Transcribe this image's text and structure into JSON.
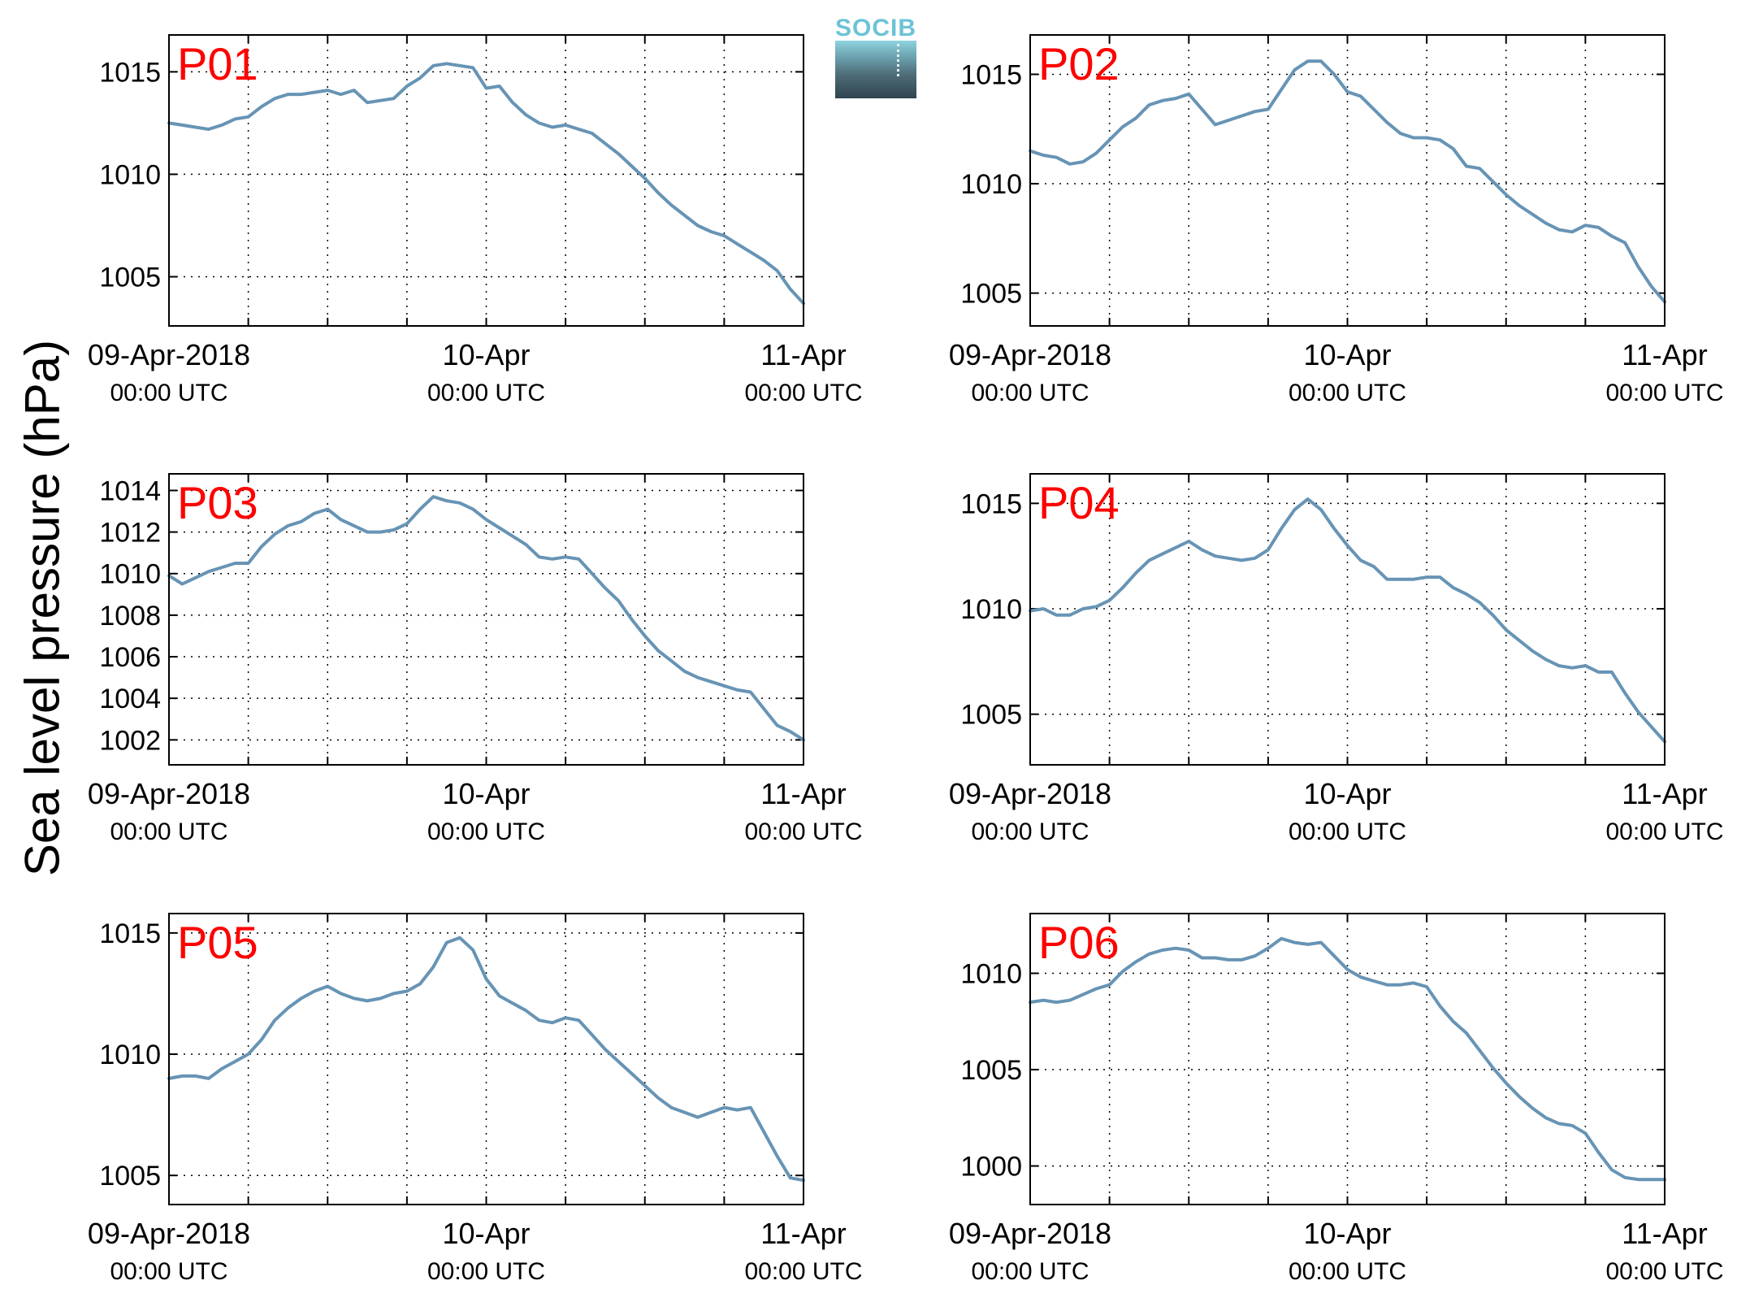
{
  "figure": {
    "ylabel": "Sea level pressure (hPa)",
    "logo_text": "SOCIB",
    "colors": {
      "series": "#6794b5",
      "station_label": "#ff0000",
      "axes": "#000000",
      "grid": "#000000"
    }
  },
  "chart_data": [
    {
      "type": "line",
      "title": "P01",
      "xlabel": "",
      "ylabel": "Sea level pressure (hPa)",
      "xticks": [
        {
          "main": "09-Apr-2018",
          "sub": "00:00 UTC"
        },
        {
          "main": "10-Apr",
          "sub": "00:00 UTC"
        },
        {
          "main": "11-Apr",
          "sub": "00:00 UTC"
        }
      ],
      "xlim_hours": [
        0,
        48
      ],
      "ylim": [
        1002.6,
        1016.8
      ],
      "yticks": [
        1005,
        1010,
        1015
      ],
      "grid": true,
      "series": [
        {
          "x": [
            0,
            1,
            2,
            3,
            4,
            5,
            6,
            7,
            8,
            9,
            10,
            11,
            12,
            13,
            14,
            15,
            16,
            17,
            18,
            19,
            20,
            21,
            22,
            23,
            24,
            25,
            26,
            27,
            28,
            29,
            30,
            31,
            32,
            33,
            34,
            35,
            36,
            37,
            38,
            39,
            40,
            41,
            42,
            43,
            44,
            45,
            46,
            47,
            48
          ],
          "y": [
            1012.5,
            1012.4,
            1012.3,
            1012.2,
            1012.4,
            1012.7,
            1012.8,
            1013.3,
            1013.7,
            1013.9,
            1013.9,
            1014.0,
            1014.1,
            1013.9,
            1014.1,
            1013.5,
            1013.6,
            1013.7,
            1014.3,
            1014.7,
            1015.3,
            1015.4,
            1015.3,
            1015.2,
            1014.2,
            1014.3,
            1013.5,
            1012.9,
            1012.5,
            1012.3,
            1012.4,
            1012.2,
            1012.0,
            1011.5,
            1011.0,
            1010.4,
            1009.8,
            1009.1,
            1008.5,
            1008.0,
            1007.5,
            1007.2,
            1007.0,
            1006.6,
            1006.2,
            1005.8,
            1005.3,
            1004.4,
            1003.7
          ]
        }
      ]
    },
    {
      "type": "line",
      "title": "P02",
      "xlabel": "",
      "ylabel": "Sea level pressure (hPa)",
      "xticks": [
        {
          "main": "09-Apr-2018",
          "sub": "00:00 UTC"
        },
        {
          "main": "10-Apr",
          "sub": "00:00 UTC"
        },
        {
          "main": "11-Apr",
          "sub": "00:00 UTC"
        }
      ],
      "xlim_hours": [
        0,
        48
      ],
      "ylim": [
        1003.5,
        1016.8
      ],
      "yticks": [
        1005,
        1010,
        1015
      ],
      "grid": true,
      "series": [
        {
          "x": [
            0,
            1,
            2,
            3,
            4,
            5,
            6,
            7,
            8,
            9,
            10,
            11,
            12,
            13,
            14,
            15,
            16,
            17,
            18,
            19,
            20,
            21,
            22,
            23,
            24,
            25,
            26,
            27,
            28,
            29,
            30,
            31,
            32,
            33,
            34,
            35,
            36,
            37,
            38,
            39,
            40,
            41,
            42,
            43,
            44,
            45,
            46,
            47,
            48
          ],
          "y": [
            1011.5,
            1011.3,
            1011.2,
            1010.9,
            1011.0,
            1011.4,
            1012.0,
            1012.6,
            1013.0,
            1013.6,
            1013.8,
            1013.9,
            1014.1,
            1013.4,
            1012.7,
            1012.9,
            1013.1,
            1013.3,
            1013.4,
            1014.3,
            1015.2,
            1015.6,
            1015.6,
            1015.0,
            1014.2,
            1014.0,
            1013.4,
            1012.8,
            1012.3,
            1012.1,
            1012.1,
            1012.0,
            1011.6,
            1010.8,
            1010.7,
            1010.1,
            1009.5,
            1009.0,
            1008.6,
            1008.2,
            1007.9,
            1007.8,
            1008.1,
            1008.0,
            1007.6,
            1007.3,
            1006.2,
            1005.3,
            1004.6
          ]
        }
      ]
    },
    {
      "type": "line",
      "title": "P03",
      "xlabel": "",
      "ylabel": "Sea level pressure (hPa)",
      "xticks": [
        {
          "main": "09-Apr-2018",
          "sub": "00:00 UTC"
        },
        {
          "main": "10-Apr",
          "sub": "00:00 UTC"
        },
        {
          "main": "11-Apr",
          "sub": "00:00 UTC"
        }
      ],
      "xlim_hours": [
        0,
        48
      ],
      "ylim": [
        1000.8,
        1014.8
      ],
      "yticks": [
        1002,
        1004,
        1006,
        1008,
        1010,
        1012,
        1014
      ],
      "grid": true,
      "series": [
        {
          "x": [
            0,
            1,
            2,
            3,
            4,
            5,
            6,
            7,
            8,
            9,
            10,
            11,
            12,
            13,
            14,
            15,
            16,
            17,
            18,
            19,
            20,
            21,
            22,
            23,
            24,
            25,
            26,
            27,
            28,
            29,
            30,
            31,
            32,
            33,
            34,
            35,
            36,
            37,
            38,
            39,
            40,
            41,
            42,
            43,
            44,
            45,
            46,
            47,
            48
          ],
          "y": [
            1009.9,
            1009.5,
            1009.8,
            1010.1,
            1010.3,
            1010.5,
            1010.5,
            1011.3,
            1011.9,
            1012.3,
            1012.5,
            1012.9,
            1013.1,
            1012.6,
            1012.3,
            1012.0,
            1012.0,
            1012.1,
            1012.4,
            1013.1,
            1013.7,
            1013.5,
            1013.4,
            1013.1,
            1012.6,
            1012.2,
            1011.8,
            1011.4,
            1010.8,
            1010.7,
            1010.8,
            1010.7,
            1010.0,
            1009.3,
            1008.7,
            1007.8,
            1007.0,
            1006.3,
            1005.8,
            1005.3,
            1005.0,
            1004.8,
            1004.6,
            1004.4,
            1004.3,
            1003.5,
            1002.7,
            1002.4,
            1002.0
          ]
        }
      ]
    },
    {
      "type": "line",
      "title": "P04",
      "xlabel": "",
      "ylabel": "Sea level pressure (hPa)",
      "xticks": [
        {
          "main": "09-Apr-2018",
          "sub": "00:00 UTC"
        },
        {
          "main": "10-Apr",
          "sub": "00:00 UTC"
        },
        {
          "main": "11-Apr",
          "sub": "00:00 UTC"
        }
      ],
      "xlim_hours": [
        0,
        48
      ],
      "ylim": [
        1002.6,
        1016.4
      ],
      "yticks": [
        1005,
        1010,
        1015
      ],
      "grid": true,
      "series": [
        {
          "x": [
            0,
            1,
            2,
            3,
            4,
            5,
            6,
            7,
            8,
            9,
            10,
            11,
            12,
            13,
            14,
            15,
            16,
            17,
            18,
            19,
            20,
            21,
            22,
            23,
            24,
            25,
            26,
            27,
            28,
            29,
            30,
            31,
            32,
            33,
            34,
            35,
            36,
            37,
            38,
            39,
            40,
            41,
            42,
            43,
            44,
            45,
            46,
            47,
            48
          ],
          "y": [
            1009.9,
            1010.0,
            1009.7,
            1009.7,
            1010.0,
            1010.1,
            1010.4,
            1011.0,
            1011.7,
            1012.3,
            1012.6,
            1012.9,
            1013.2,
            1012.8,
            1012.5,
            1012.4,
            1012.3,
            1012.4,
            1012.8,
            1013.8,
            1014.7,
            1015.2,
            1014.7,
            1013.8,
            1013.0,
            1012.3,
            1012.0,
            1011.4,
            1011.4,
            1011.4,
            1011.5,
            1011.5,
            1011.0,
            1010.7,
            1010.3,
            1009.7,
            1009.0,
            1008.5,
            1008.0,
            1007.6,
            1007.3,
            1007.2,
            1007.3,
            1007.0,
            1007.0,
            1006.0,
            1005.1,
            1004.4,
            1003.7
          ]
        }
      ]
    },
    {
      "type": "line",
      "title": "P05",
      "xlabel": "",
      "ylabel": "Sea level pressure (hPa)",
      "xticks": [
        {
          "main": "09-Apr-2018",
          "sub": "00:00 UTC"
        },
        {
          "main": "10-Apr",
          "sub": "00:00 UTC"
        },
        {
          "main": "11-Apr",
          "sub": "00:00 UTC"
        }
      ],
      "xlim_hours": [
        0,
        48
      ],
      "ylim": [
        1003.8,
        1015.8
      ],
      "yticks": [
        1005,
        1010,
        1015
      ],
      "grid": true,
      "series": [
        {
          "x": [
            0,
            1,
            2,
            3,
            4,
            5,
            6,
            7,
            8,
            9,
            10,
            11,
            12,
            13,
            14,
            15,
            16,
            17,
            18,
            19,
            20,
            21,
            22,
            23,
            24,
            25,
            26,
            27,
            28,
            29,
            30,
            31,
            32,
            33,
            34,
            35,
            36,
            37,
            38,
            39,
            40,
            41,
            42,
            43,
            44,
            45,
            46,
            47,
            48
          ],
          "y": [
            1009.0,
            1009.1,
            1009.1,
            1009.0,
            1009.4,
            1009.7,
            1010.0,
            1010.6,
            1011.4,
            1011.9,
            1012.3,
            1012.6,
            1012.8,
            1012.5,
            1012.3,
            1012.2,
            1012.3,
            1012.5,
            1012.6,
            1012.9,
            1013.6,
            1014.6,
            1014.8,
            1014.3,
            1013.1,
            1012.4,
            1012.1,
            1011.8,
            1011.4,
            1011.3,
            1011.5,
            1011.4,
            1010.8,
            1010.2,
            1009.7,
            1009.2,
            1008.7,
            1008.2,
            1007.8,
            1007.6,
            1007.4,
            1007.6,
            1007.8,
            1007.7,
            1007.8,
            1006.8,
            1005.8,
            1004.9,
            1004.8
          ]
        }
      ]
    },
    {
      "type": "line",
      "title": "P06",
      "xlabel": "",
      "ylabel": "Sea level pressure (hPa)",
      "xticks": [
        {
          "main": "09-Apr-2018",
          "sub": "00:00 UTC"
        },
        {
          "main": "10-Apr",
          "sub": "00:00 UTC"
        },
        {
          "main": "11-Apr",
          "sub": "00:00 UTC"
        }
      ],
      "xlim_hours": [
        0,
        48
      ],
      "ylim": [
        998.0,
        1013.1
      ],
      "yticks": [
        1000,
        1005,
        1010
      ],
      "grid": true,
      "series": [
        {
          "x": [
            0,
            1,
            2,
            3,
            4,
            5,
            6,
            7,
            8,
            9,
            10,
            11,
            12,
            13,
            14,
            15,
            16,
            17,
            18,
            19,
            20,
            21,
            22,
            23,
            24,
            25,
            26,
            27,
            28,
            29,
            30,
            31,
            32,
            33,
            34,
            35,
            36,
            37,
            38,
            39,
            40,
            41,
            42,
            43,
            44,
            45,
            46,
            47,
            48
          ],
          "y": [
            1008.5,
            1008.6,
            1008.5,
            1008.6,
            1008.9,
            1009.2,
            1009.4,
            1010.1,
            1010.6,
            1011.0,
            1011.2,
            1011.3,
            1011.2,
            1010.8,
            1010.8,
            1010.7,
            1010.7,
            1010.9,
            1011.3,
            1011.8,
            1011.6,
            1011.5,
            1011.6,
            1010.9,
            1010.2,
            1009.8,
            1009.6,
            1009.4,
            1009.4,
            1009.5,
            1009.3,
            1008.3,
            1007.5,
            1006.9,
            1006.0,
            1005.1,
            1004.3,
            1003.6,
            1003.0,
            1002.5,
            1002.2,
            1002.1,
            1001.7,
            1000.7,
            999.8,
            999.4,
            999.3,
            999.3,
            999.3
          ]
        }
      ]
    }
  ]
}
